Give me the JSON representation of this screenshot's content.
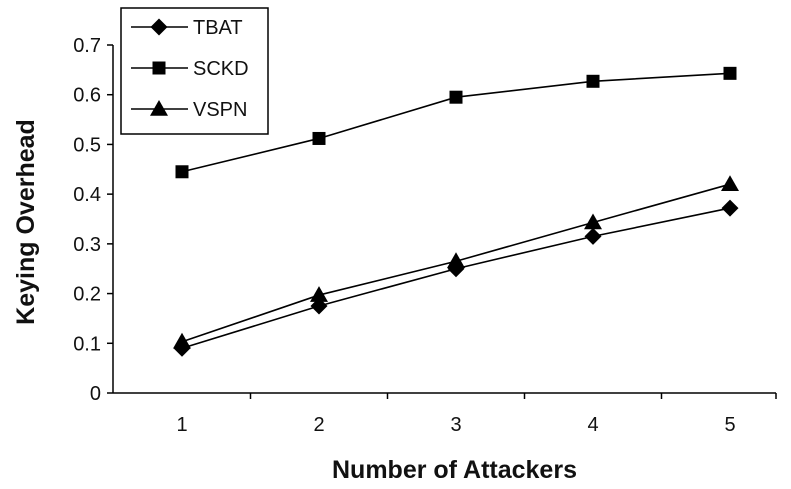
{
  "chart_data": {
    "type": "line",
    "xlabel": "Number of Attackers",
    "ylabel": "Keying Overhead",
    "x": [
      1,
      2,
      3,
      4,
      5
    ],
    "ylim": [
      0,
      0.7
    ],
    "yticks": [
      "0",
      "0.1",
      "0.2",
      "0.3",
      "0.4",
      "0.5",
      "0.6",
      "0.7"
    ],
    "xticks": [
      "1",
      "2",
      "3",
      "4",
      "5"
    ],
    "grid": false,
    "legend_position": "top-left",
    "series": [
      {
        "name": "TBAT",
        "marker": "diamond",
        "color": "#000000",
        "values": [
          0.09,
          0.175,
          0.25,
          0.315,
          0.372
        ]
      },
      {
        "name": "SCKD",
        "marker": "square",
        "color": "#000000",
        "values": [
          0.445,
          0.512,
          0.595,
          0.627,
          0.643
        ]
      },
      {
        "name": "VSPN",
        "marker": "triangle",
        "color": "#000000",
        "values": [
          0.103,
          0.197,
          0.265,
          0.343,
          0.42
        ]
      }
    ]
  }
}
